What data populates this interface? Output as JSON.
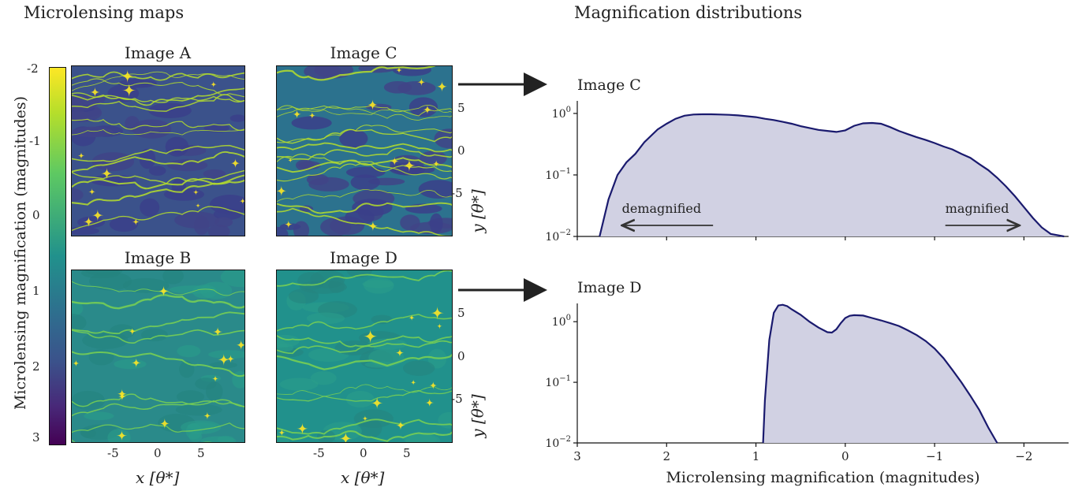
{
  "headings": {
    "maps": "Microlensing maps",
    "distributions": "Magnification distributions"
  },
  "colorbar": {
    "label": "Microlensing magnification (magnitudes)",
    "ticks": [
      "-2",
      "-1",
      "0",
      "1",
      "2",
      "3"
    ],
    "colormap": "viridis",
    "colors": [
      "#fde725",
      "#5ec962",
      "#21918c",
      "#3b528b",
      "#440154"
    ]
  },
  "maps": [
    {
      "id": "A",
      "title": "Image A",
      "style": "magnified-caustics",
      "base_color": "#3b528b"
    },
    {
      "id": "C",
      "title": "Image C",
      "style": "magnified-caustics",
      "base_color": "#2c728e"
    },
    {
      "id": "B",
      "title": "Image B",
      "style": "demagnified-caustics",
      "base_color": "#2a8a8a"
    },
    {
      "id": "D",
      "title": "Image D",
      "style": "demagnified-caustics",
      "base_color": "#21918c"
    }
  ],
  "map_axes": {
    "x_ticks": [
      "-5",
      "0",
      "5"
    ],
    "y_ticks": [
      "5",
      "0",
      "-5"
    ],
    "x_label": "x [θ*]",
    "y_label": "y [θ*]"
  },
  "chart_data": [
    {
      "type": "area",
      "panel_label": "Image C",
      "xlabel": "",
      "ylabel": "",
      "y_scale": "log",
      "xlim": [
        3,
        -2.5
      ],
      "ylim": [
        0.01,
        1.6
      ],
      "y_tick_labels": [
        "10^0",
        "10^-1",
        "10^-2"
      ],
      "annotations": [
        {
          "text": "demagnified",
          "arrow": "left"
        },
        {
          "text": "magnified",
          "arrow": "right"
        }
      ],
      "fill_color": "#d1d1e3",
      "line_color": "#1a1a6e",
      "x": [
        2.75,
        2.65,
        2.55,
        2.45,
        2.35,
        2.25,
        2.1,
        2.0,
        1.9,
        1.8,
        1.7,
        1.6,
        1.5,
        1.4,
        1.3,
        1.2,
        1.1,
        1.0,
        0.9,
        0.8,
        0.7,
        0.6,
        0.5,
        0.4,
        0.3,
        0.2,
        0.1,
        0.0,
        -0.1,
        -0.2,
        -0.3,
        -0.4,
        -0.5,
        -0.6,
        -0.7,
        -0.8,
        -0.9,
        -1.0,
        -1.1,
        -1.2,
        -1.3,
        -1.4,
        -1.5,
        -1.6,
        -1.7,
        -1.8,
        -1.9,
        -2.0,
        -2.1,
        -2.2,
        -2.3,
        -2.45
      ],
      "y": [
        0.01,
        0.04,
        0.1,
        0.16,
        0.22,
        0.34,
        0.55,
        0.68,
        0.82,
        0.92,
        0.96,
        0.97,
        0.97,
        0.96,
        0.95,
        0.93,
        0.9,
        0.87,
        0.82,
        0.78,
        0.73,
        0.68,
        0.62,
        0.58,
        0.54,
        0.52,
        0.5,
        0.53,
        0.63,
        0.69,
        0.7,
        0.68,
        0.6,
        0.52,
        0.46,
        0.41,
        0.37,
        0.33,
        0.29,
        0.26,
        0.22,
        0.19,
        0.15,
        0.12,
        0.09,
        0.065,
        0.045,
        0.03,
        0.02,
        0.014,
        0.011,
        0.01
      ]
    },
    {
      "type": "area",
      "panel_label": "Image D",
      "xlabel": "Microlensing magnification (magnitudes)",
      "ylabel": "",
      "y_scale": "log",
      "xlim": [
        3,
        -2.5
      ],
      "ylim": [
        0.01,
        2.0
      ],
      "x_tick_labels": [
        "3",
        "2",
        "1",
        "0",
        "−1",
        "−2"
      ],
      "x_ticks": [
        3,
        2,
        1,
        0,
        -1,
        -2
      ],
      "y_tick_labels": [
        "10^0",
        "10^-1",
        "10^-2"
      ],
      "fill_color": "#d1d1e3",
      "line_color": "#1a1a6e",
      "x": [
        0.92,
        0.9,
        0.85,
        0.8,
        0.75,
        0.7,
        0.65,
        0.6,
        0.5,
        0.4,
        0.3,
        0.2,
        0.15,
        0.1,
        0.05,
        0.0,
        -0.05,
        -0.1,
        -0.2,
        -0.3,
        -0.4,
        -0.5,
        -0.6,
        -0.7,
        -0.8,
        -0.9,
        -1.0,
        -1.1,
        -1.2,
        -1.3,
        -1.4,
        -1.5,
        -1.6,
        -1.7
      ],
      "y": [
        0.01,
        0.05,
        0.5,
        1.4,
        1.85,
        1.9,
        1.8,
        1.6,
        1.3,
        1.0,
        0.8,
        0.67,
        0.66,
        0.75,
        0.95,
        1.15,
        1.25,
        1.28,
        1.26,
        1.15,
        1.05,
        0.95,
        0.85,
        0.72,
        0.6,
        0.48,
        0.36,
        0.25,
        0.16,
        0.1,
        0.06,
        0.035,
        0.018,
        0.01
      ]
    }
  ]
}
